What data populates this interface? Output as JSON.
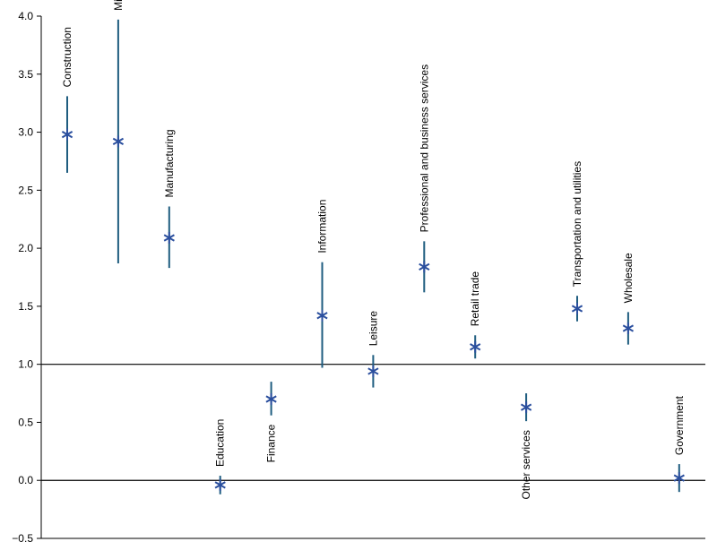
{
  "chart_data": {
    "type": "scatter",
    "title": "",
    "xlabel": "",
    "ylabel": "",
    "ylim": [
      -0.5,
      4.0
    ],
    "yticks": [
      -0.5,
      0.0,
      0.5,
      1.0,
      1.5,
      2.0,
      2.5,
      3.0,
      3.5,
      4.0
    ],
    "ytick_labels": [
      "−0.5",
      "0.0",
      "0.5",
      "1.0",
      "1.5",
      "2.0",
      "2.5",
      "3.0",
      "3.5",
      "4.0"
    ],
    "reference_lines": [
      0.0,
      1.0
    ],
    "grid": false,
    "legend": "none",
    "colors": {
      "marker": "#2b4f9e",
      "errorbar": "#1f5d80",
      "axis": "#000000"
    },
    "categories": [
      "Construction",
      "Mining",
      "Manufacturing",
      "Education",
      "Finance",
      "Information",
      "Leisure",
      "Professional and business services",
      "Retail trade",
      "Other services",
      "Transportation and utilities",
      "Wholesale",
      "Government"
    ],
    "label_placement": [
      "above",
      "above",
      "above",
      "above",
      "below",
      "above",
      "above",
      "above",
      "above",
      "below",
      "above",
      "above",
      "above"
    ],
    "values": [
      2.98,
      2.92,
      2.09,
      -0.04,
      0.7,
      1.42,
      0.94,
      1.84,
      1.15,
      0.63,
      1.48,
      1.31,
      0.02
    ],
    "lower": [
      2.65,
      1.87,
      1.83,
      -0.12,
      0.56,
      0.97,
      0.8,
      1.62,
      1.05,
      0.51,
      1.37,
      1.17,
      -0.1
    ],
    "upper": [
      3.31,
      3.97,
      2.36,
      0.04,
      0.85,
      1.88,
      1.08,
      2.06,
      1.25,
      0.75,
      1.59,
      1.45,
      0.14
    ]
  }
}
